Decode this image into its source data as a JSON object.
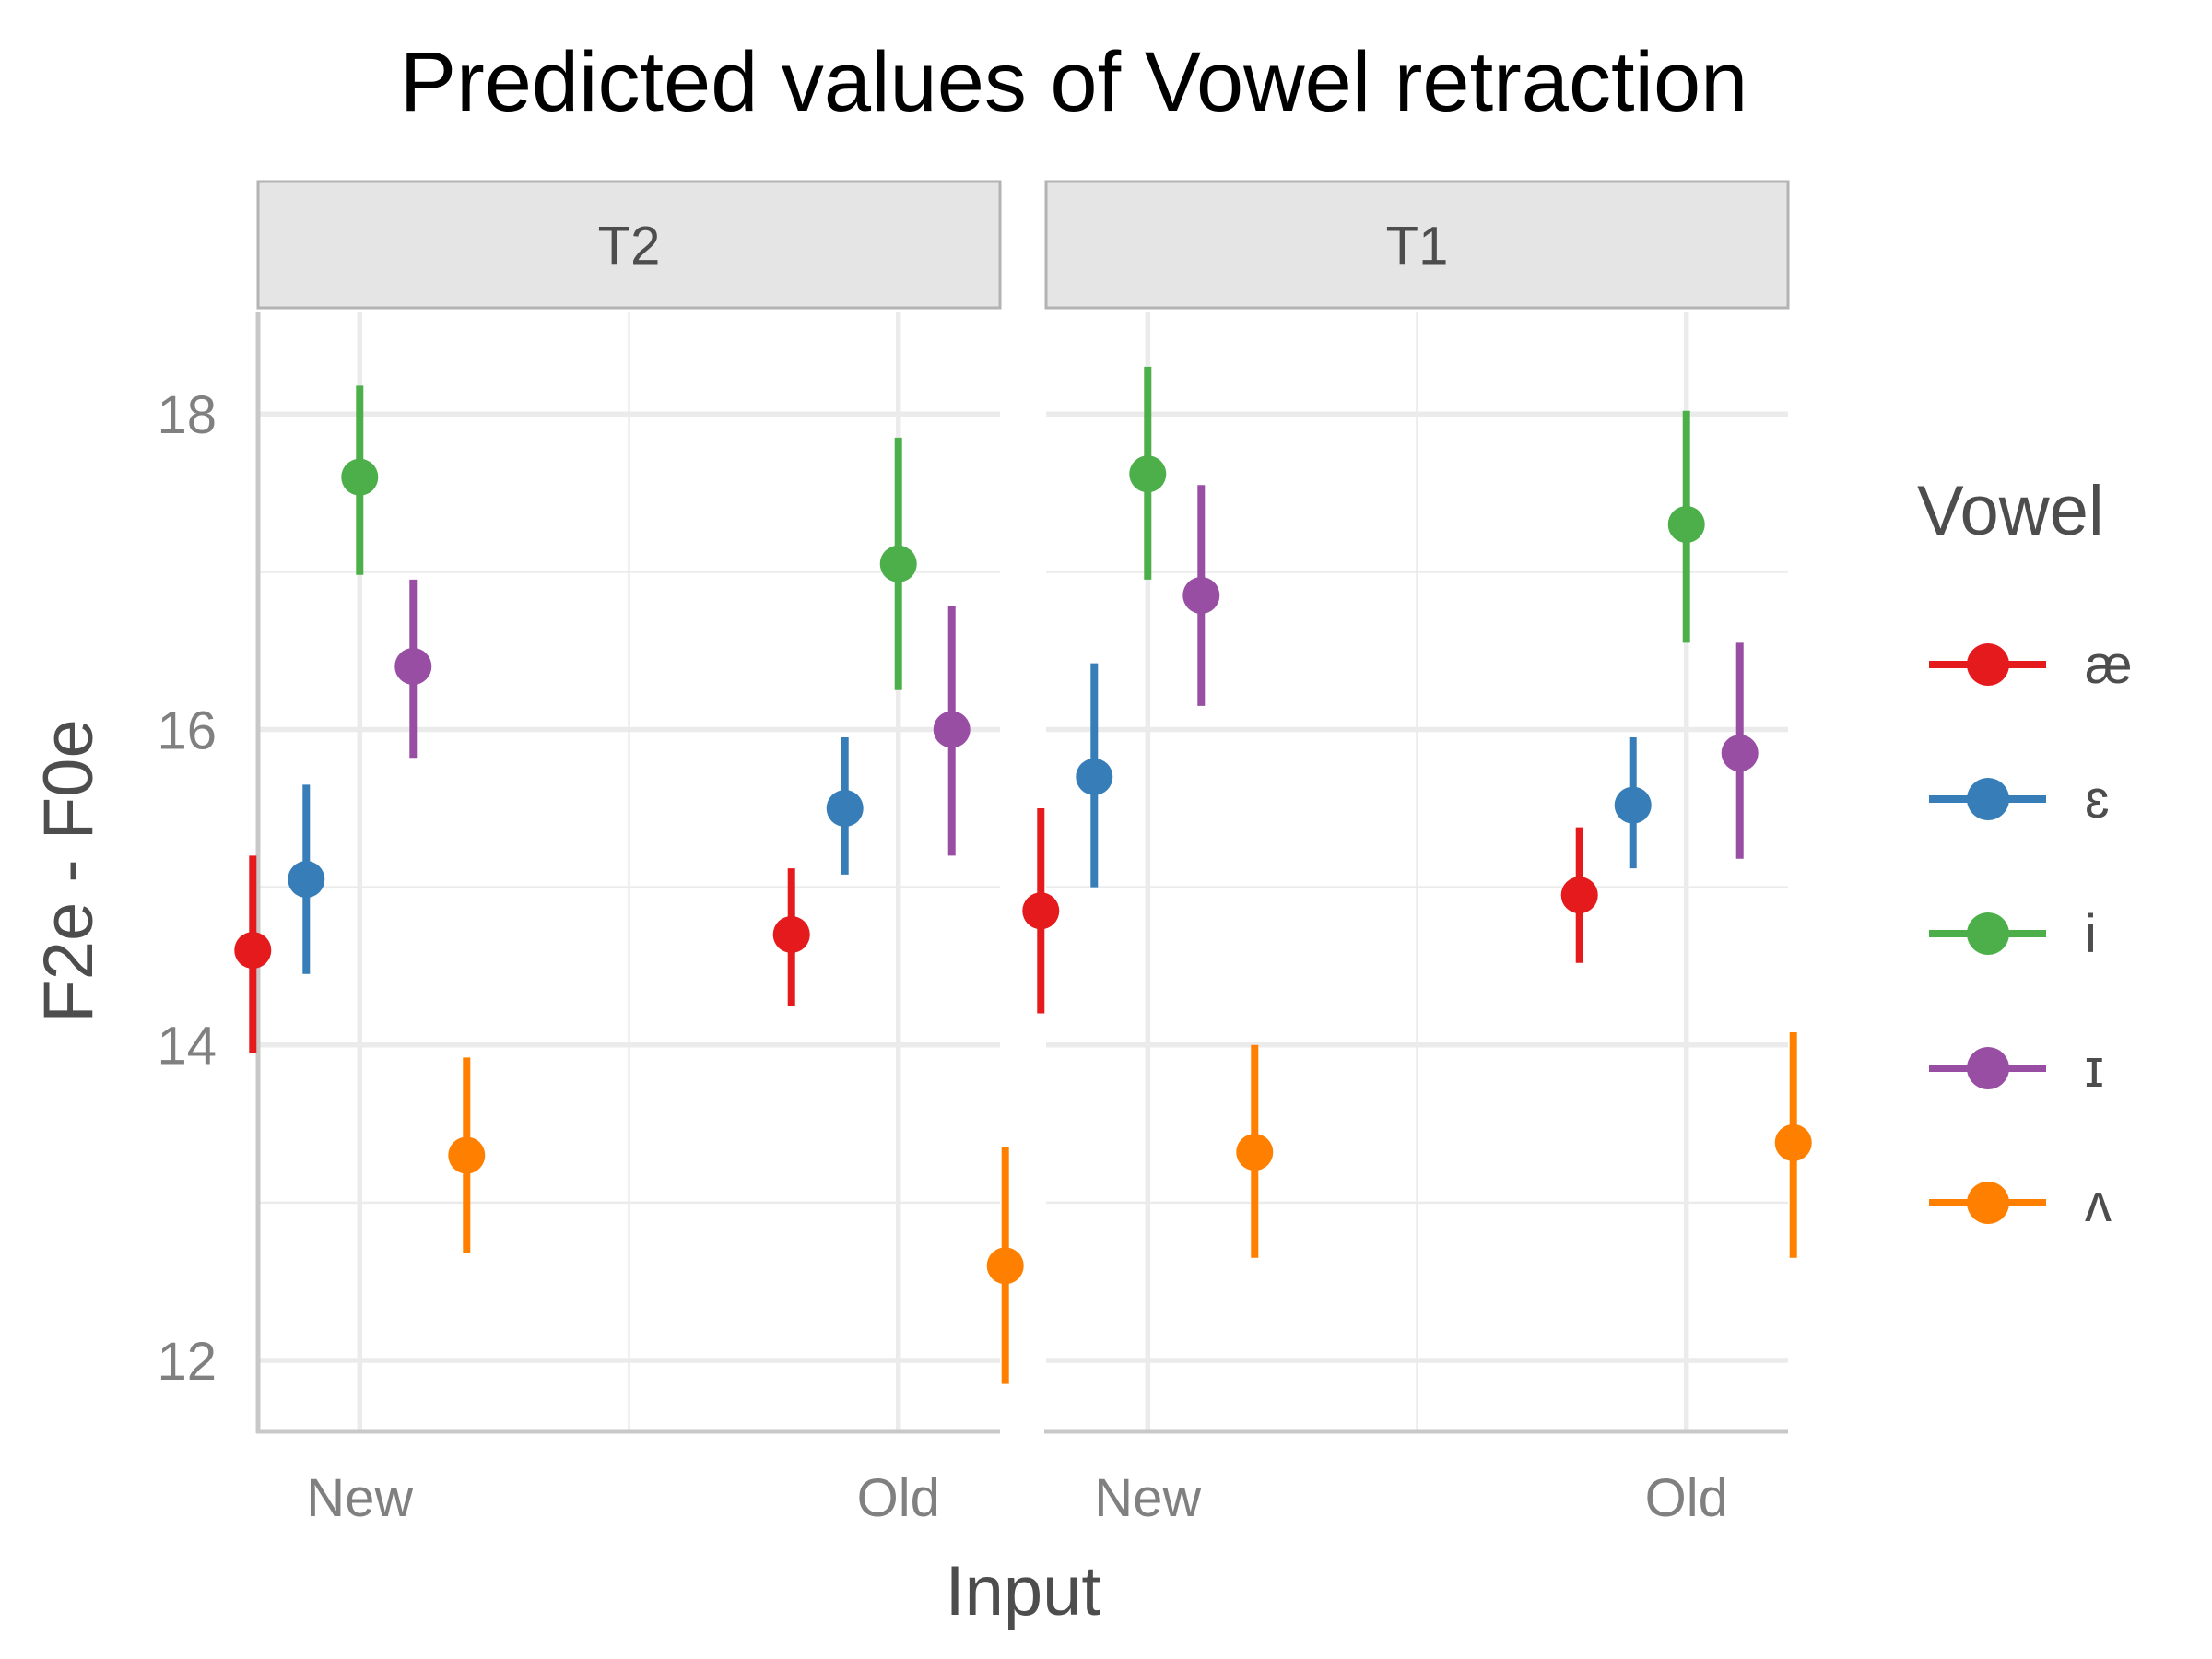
{
  "chart_data": {
    "type": "point-range",
    "title": "Predicted values of Vowel retraction",
    "xlabel": "Input",
    "ylabel": "F2e - F0e",
    "ylim": [
      11.55,
      18.65
    ],
    "yticks": [
      12,
      14,
      16,
      18
    ],
    "categories": [
      "New",
      "Old"
    ],
    "legend_title": "Vowel",
    "legend_position": "right",
    "panels": [
      {
        "name": "T2",
        "series": [
          {
            "name": "æ",
            "color": "#E41A1C",
            "values": [
              {
                "x": "New",
                "y": 14.6,
                "lo": 13.95,
                "hi": 15.2
              },
              {
                "x": "Old",
                "y": 14.7,
                "lo": 14.25,
                "hi": 15.12
              }
            ]
          },
          {
            "name": "ɛ",
            "color": "#377EB8",
            "values": [
              {
                "x": "New",
                "y": 15.05,
                "lo": 14.45,
                "hi": 15.65
              },
              {
                "x": "Old",
                "y": 15.5,
                "lo": 15.08,
                "hi": 15.95
              }
            ]
          },
          {
            "name": "i",
            "color": "#4DAF4A",
            "values": [
              {
                "x": "New",
                "y": 17.6,
                "lo": 16.98,
                "hi": 18.18
              },
              {
                "x": "Old",
                "y": 17.05,
                "lo": 16.25,
                "hi": 17.85
              }
            ]
          },
          {
            "name": "ɪ",
            "color": "#984EA3",
            "values": [
              {
                "x": "New",
                "y": 16.4,
                "lo": 15.82,
                "hi": 16.95
              },
              {
                "x": "Old",
                "y": 16.0,
                "lo": 15.2,
                "hi": 16.78
              }
            ]
          },
          {
            "name": "ʌ",
            "color": "#FF7F00",
            "values": [
              {
                "x": "New",
                "y": 13.3,
                "lo": 12.68,
                "hi": 13.92
              },
              {
                "x": "Old",
                "y": 12.6,
                "lo": 11.85,
                "hi": 13.35
              }
            ]
          }
        ]
      },
      {
        "name": "T1",
        "series": [
          {
            "name": "æ",
            "color": "#E41A1C",
            "values": [
              {
                "x": "New",
                "y": 14.85,
                "lo": 14.2,
                "hi": 15.5
              },
              {
                "x": "Old",
                "y": 14.95,
                "lo": 14.52,
                "hi": 15.38
              }
            ]
          },
          {
            "name": "ɛ",
            "color": "#377EB8",
            "values": [
              {
                "x": "New",
                "y": 15.7,
                "lo": 15.0,
                "hi": 16.42
              },
              {
                "x": "Old",
                "y": 15.52,
                "lo": 15.12,
                "hi": 15.95
              }
            ]
          },
          {
            "name": "i",
            "color": "#4DAF4A",
            "values": [
              {
                "x": "New",
                "y": 17.62,
                "lo": 16.95,
                "hi": 18.3
              },
              {
                "x": "Old",
                "y": 17.3,
                "lo": 16.55,
                "hi": 18.02
              }
            ]
          },
          {
            "name": "ɪ",
            "color": "#984EA3",
            "values": [
              {
                "x": "New",
                "y": 16.85,
                "lo": 16.15,
                "hi": 17.55
              },
              {
                "x": "Old",
                "y": 15.85,
                "lo": 15.18,
                "hi": 16.55
              }
            ]
          },
          {
            "name": "ʌ",
            "color": "#FF7F00",
            "values": [
              {
                "x": "New",
                "y": 13.32,
                "lo": 12.65,
                "hi": 14.0
              },
              {
                "x": "Old",
                "y": 13.38,
                "lo": 12.65,
                "hi": 14.08
              }
            ]
          }
        ]
      }
    ]
  },
  "colors": {
    "grid": "#ebebeb",
    "axis_line": "#c8c8c8",
    "strip_fill": "#e5e5e5",
    "strip_border": "#b3b3b3"
  }
}
